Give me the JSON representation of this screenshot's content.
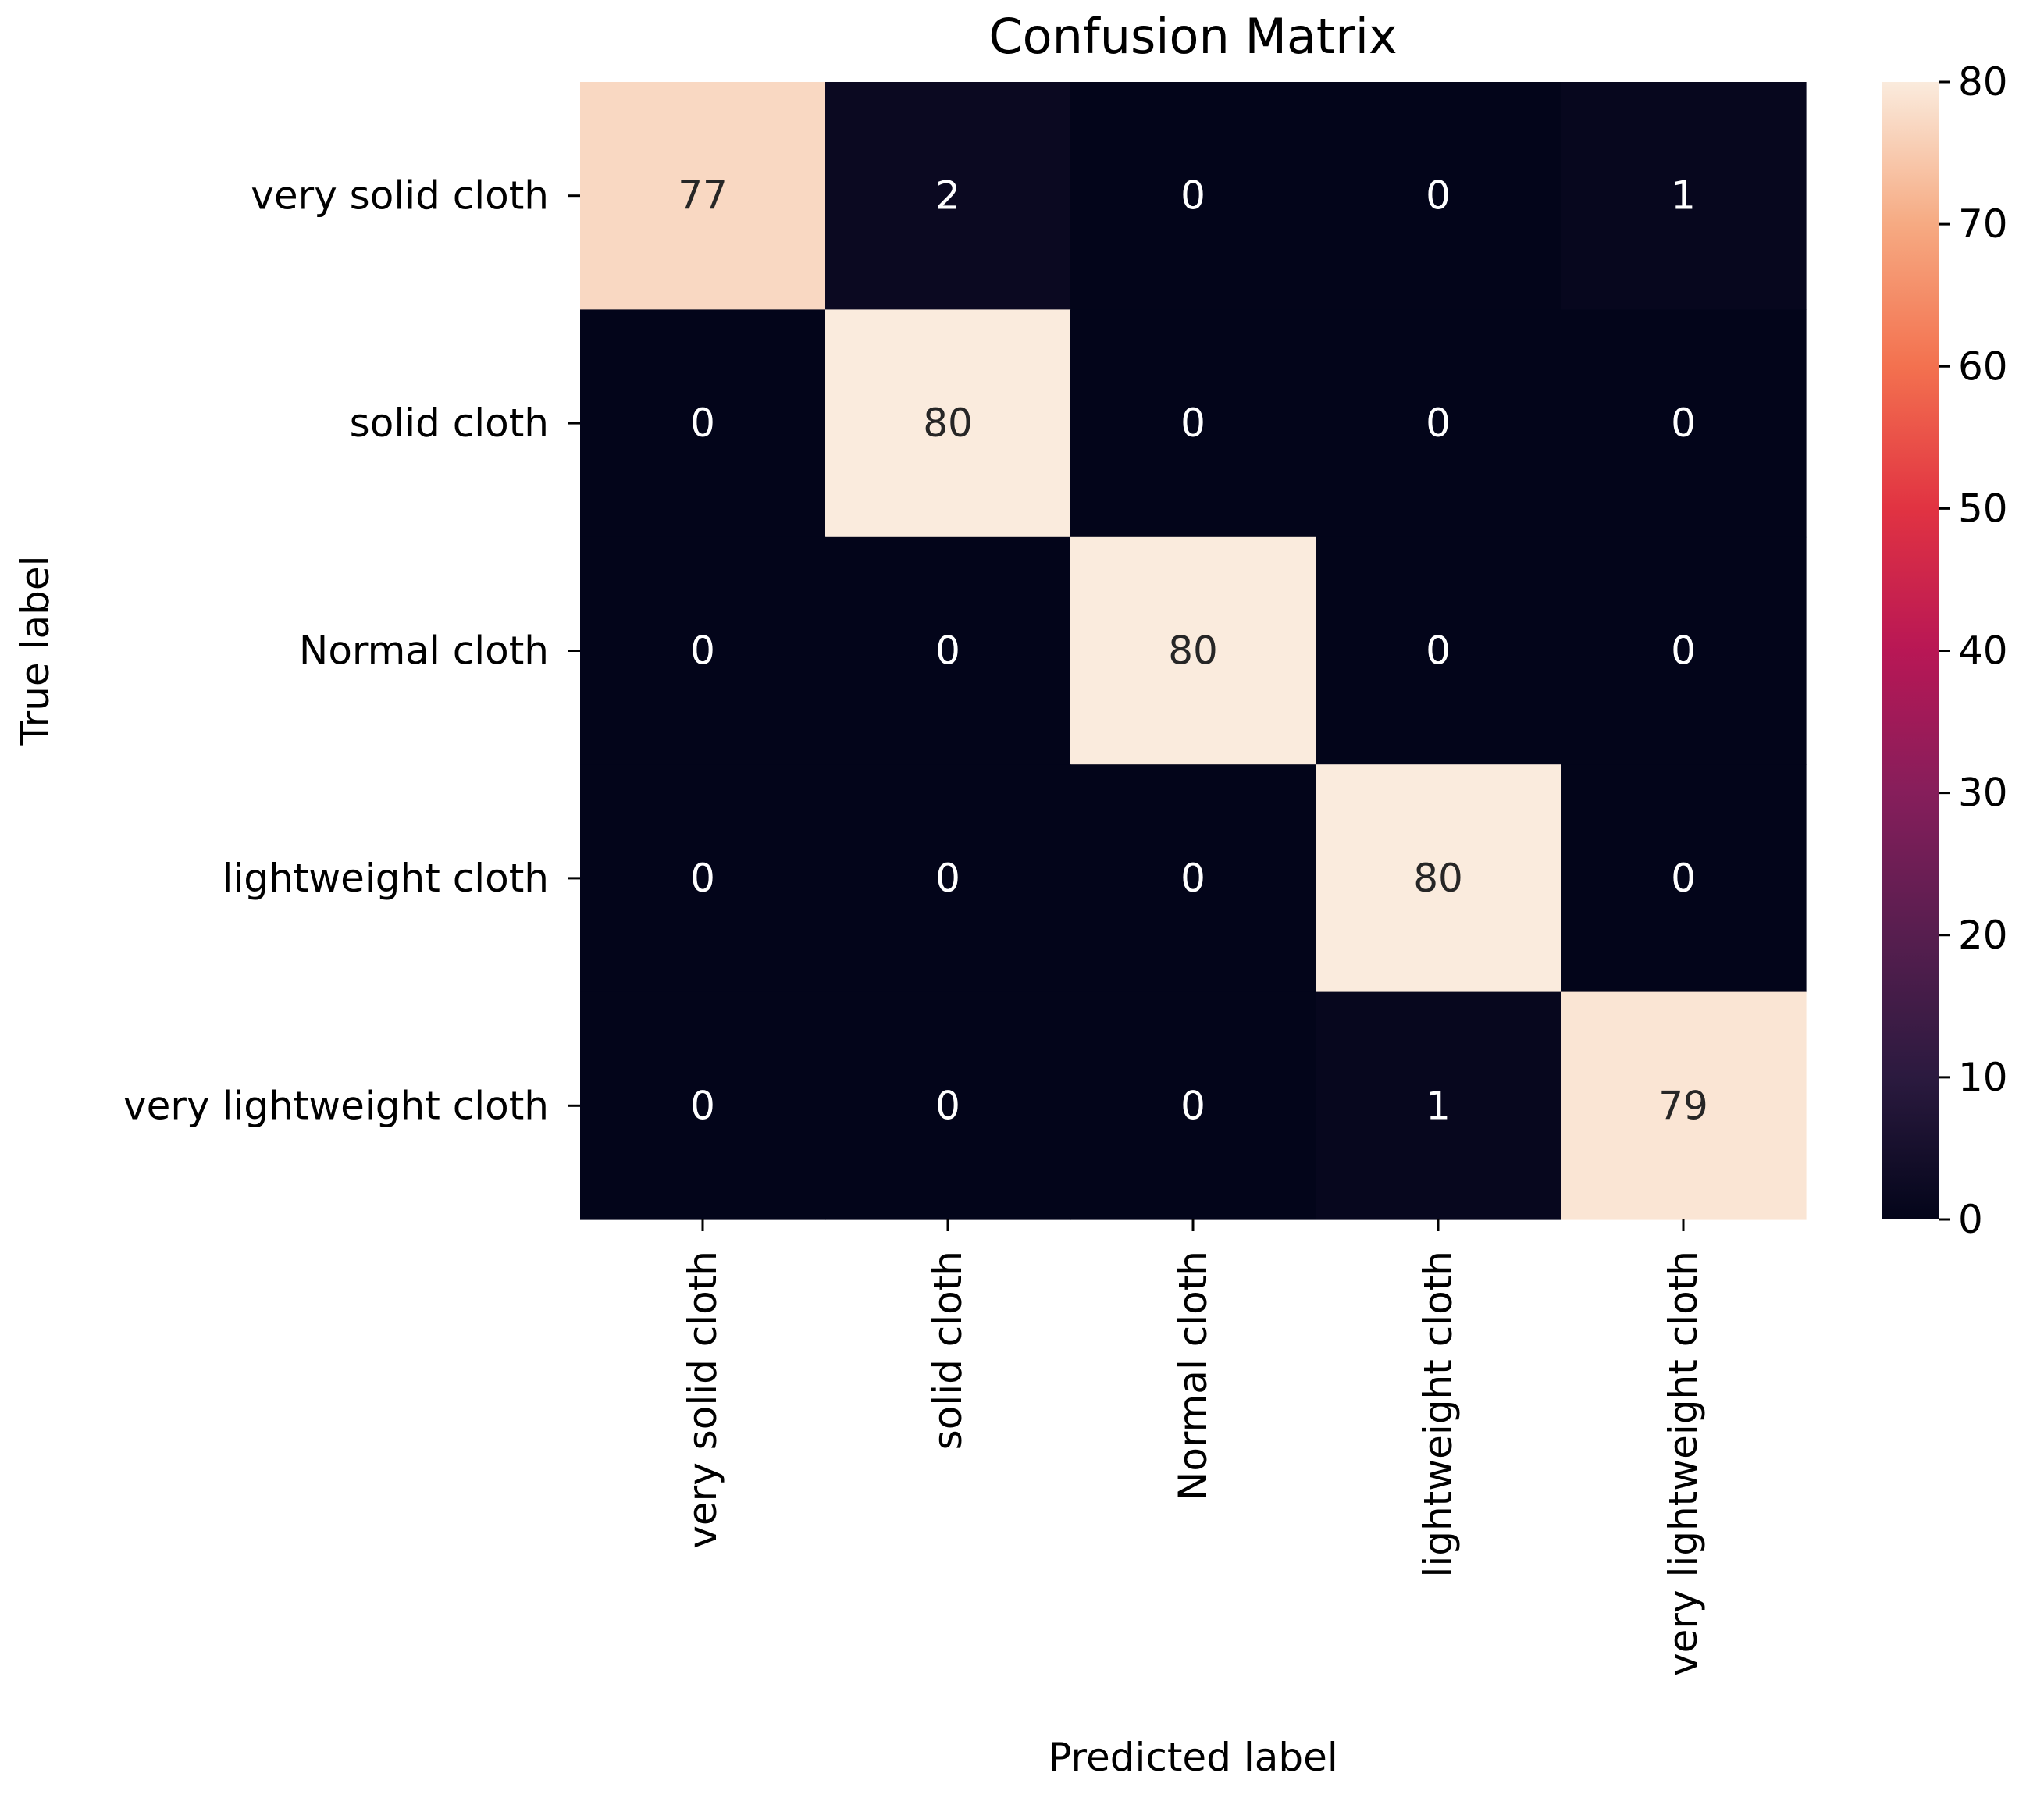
{
  "chart_data": {
    "type": "heatmap",
    "title": "Confusion Matrix",
    "xlabel": "Predicted label",
    "ylabel": "True label",
    "x_categories": [
      "very solid cloth",
      "solid cloth",
      "Normal cloth",
      "lightweight cloth",
      "very lightweight cloth"
    ],
    "y_categories": [
      "very solid cloth",
      "solid cloth",
      "Normal cloth",
      "lightweight cloth",
      "very lightweight cloth"
    ],
    "values": [
      [
        77,
        2,
        0,
        0,
        1
      ],
      [
        0,
        80,
        0,
        0,
        0
      ],
      [
        0,
        0,
        80,
        0,
        0
      ],
      [
        0,
        0,
        0,
        80,
        0
      ],
      [
        0,
        0,
        0,
        1,
        79
      ]
    ],
    "colorbar": {
      "range": [
        0,
        80
      ],
      "ticks": [
        0,
        10,
        20,
        30,
        40,
        50,
        60,
        70,
        80
      ],
      "colormap": "rocket"
    }
  }
}
